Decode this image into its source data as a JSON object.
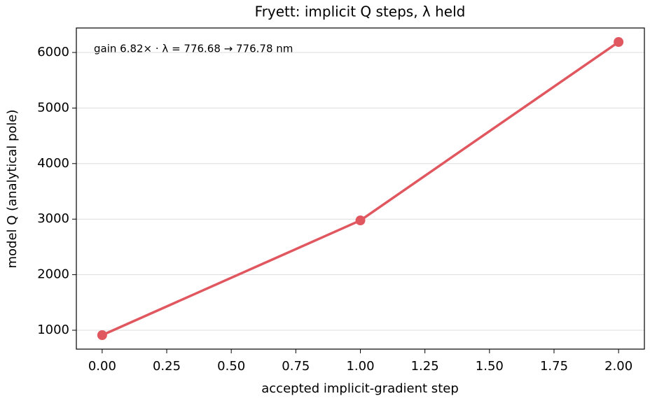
{
  "chart_data": {
    "type": "line",
    "title": "Fryett: implicit Q steps, λ held",
    "xlabel": "accepted implicit-gradient step",
    "ylabel": "model Q (analytical pole)",
    "annotation": "gain 6.82× · λ = 776.68 → 776.78 nm",
    "x": [
      0,
      1,
      2
    ],
    "series": [
      {
        "name": "model Q",
        "color": "#e0575f",
        "values": [
          912,
          2977,
          6189
        ]
      }
    ],
    "xlim": [
      -0.1,
      2.1
    ],
    "xticks": [
      {
        "value": 0,
        "label": "0.00"
      },
      {
        "value": 0.25,
        "label": "0.25"
      },
      {
        "value": 0.5,
        "label": "0.50"
      },
      {
        "value": 0.75,
        "label": "0.75"
      },
      {
        "value": 1,
        "label": "1.00"
      },
      {
        "value": 1.25,
        "label": "1.25"
      },
      {
        "value": 1.5,
        "label": "1.50"
      },
      {
        "value": 1.75,
        "label": "1.75"
      },
      {
        "value": 2,
        "label": "2.00"
      }
    ],
    "ylim": [
      660,
      6441
    ],
    "yticks": [
      1000,
      2000,
      3000,
      4000,
      5000,
      6000
    ],
    "grid": true
  }
}
